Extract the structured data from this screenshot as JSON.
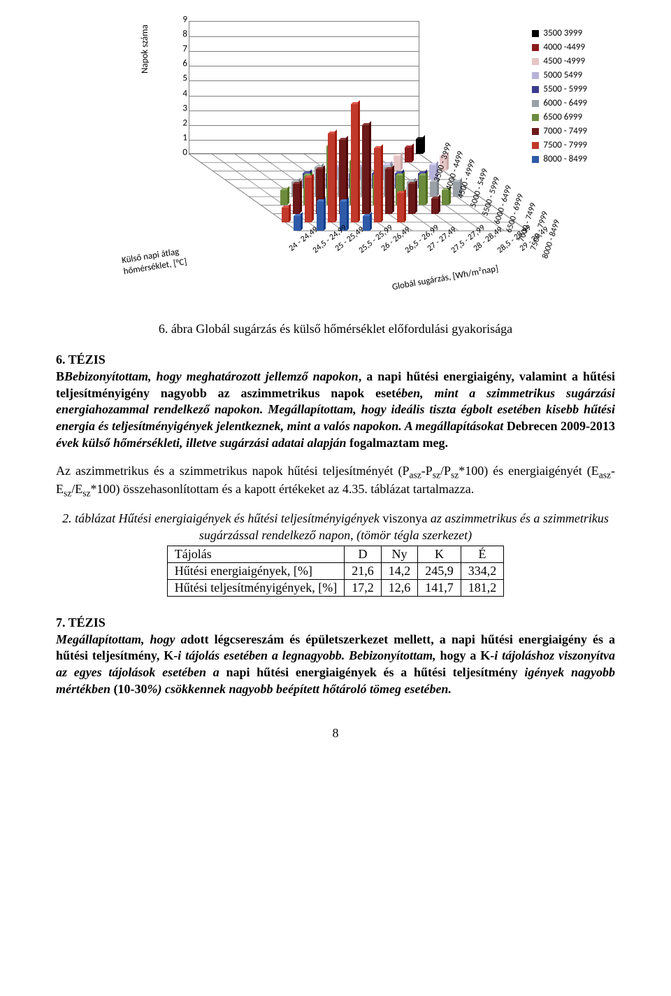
{
  "chart": {
    "type": "bar3d",
    "y_axis_title": "Napok száma",
    "y_ticks": [
      0,
      1,
      2,
      3,
      4,
      5,
      6,
      7,
      8,
      9
    ],
    "ymax": 9,
    "x_outer_title": "Külső napi átlag\nhőmérséklet, [°C]",
    "x_outer": [
      "24 - 24,49",
      "24,5 - 24,99",
      "25 - 25,49",
      "25,5 - 25,99",
      "26 - 26,49",
      "26,5 - 26,99",
      "27 - 27,49",
      "27,5 - 27,99",
      "28 - 28,49",
      "28,5 - 28,99",
      "29 - 29,49"
    ],
    "x_inner_title": "Globál sugárzás, [Wh/m²nap]",
    "x_inner": [
      "8000 - 8499",
      "7500 - 7999",
      "7000 - 7499",
      "6500 - 6999",
      "6000 - 6499",
      "5500 - 5999",
      "5000 - 5499",
      "4500 - 4999",
      "4000 - 4499",
      "3500 - 3999"
    ],
    "legend": [
      {
        "label": "3500  3999",
        "color": "#000000"
      },
      {
        "label": "4000 -4499",
        "color": "#8b1a1a"
      },
      {
        "label": "4500 -4999",
        "color": "#e6c5c5"
      },
      {
        "label": "5000  5499",
        "color": "#b7b2d8"
      },
      {
        "label": "5500 - 5999",
        "color": "#3b3b8e"
      },
      {
        "label": "6000 - 6499",
        "color": "#9aa0a6"
      },
      {
        "label": "6500  6999",
        "color": "#6d8b3d"
      },
      {
        "label": "7000 - 7499",
        "color": "#6b1919"
      },
      {
        "label": "7500 - 7999",
        "color": "#c0392b"
      },
      {
        "label": "8000 - 8499",
        "color": "#2f5aa8"
      }
    ],
    "bars": [
      {
        "outer": 0,
        "depth": 9,
        "h": 1,
        "c": "#2f5aa8"
      },
      {
        "outer": 0,
        "depth": 8,
        "h": 1,
        "c": "#c0392b"
      },
      {
        "outer": 1,
        "depth": 9,
        "h": 2,
        "c": "#2f5aa8"
      },
      {
        "outer": 1,
        "depth": 8,
        "h": 3,
        "c": "#c0392b"
      },
      {
        "outer": 1,
        "depth": 7,
        "h": 2,
        "c": "#6b1919"
      },
      {
        "outer": 1,
        "depth": 6,
        "h": 1,
        "c": "#6d8b3d"
      },
      {
        "outer": 2,
        "depth": 9,
        "h": 2,
        "c": "#2f5aa8"
      },
      {
        "outer": 2,
        "depth": 8,
        "h": 6,
        "c": "#c0392b"
      },
      {
        "outer": 2,
        "depth": 7,
        "h": 3,
        "c": "#6b1919"
      },
      {
        "outer": 2,
        "depth": 6,
        "h": 2,
        "c": "#6d8b3d"
      },
      {
        "outer": 2,
        "depth": 5,
        "h": 1,
        "c": "#9aa0a6"
      },
      {
        "outer": 3,
        "depth": 9,
        "h": 1,
        "c": "#2f5aa8"
      },
      {
        "outer": 3,
        "depth": 8,
        "h": 8,
        "c": "#c0392b"
      },
      {
        "outer": 3,
        "depth": 7,
        "h": 5,
        "c": "#6b1919"
      },
      {
        "outer": 3,
        "depth": 6,
        "h": 4,
        "c": "#6d8b3d"
      },
      {
        "outer": 3,
        "depth": 5,
        "h": 2,
        "c": "#9aa0a6"
      },
      {
        "outer": 3,
        "depth": 4,
        "h": 1,
        "c": "#3b3b8e"
      },
      {
        "outer": 4,
        "depth": 8,
        "h": 5,
        "c": "#c0392b"
      },
      {
        "outer": 4,
        "depth": 7,
        "h": 6,
        "c": "#6b1919"
      },
      {
        "outer": 4,
        "depth": 6,
        "h": 3,
        "c": "#6d8b3d"
      },
      {
        "outer": 4,
        "depth": 5,
        "h": 2,
        "c": "#9aa0a6"
      },
      {
        "outer": 4,
        "depth": 4,
        "h": 1,
        "c": "#3b3b8e"
      },
      {
        "outer": 5,
        "depth": 8,
        "h": 2,
        "c": "#c0392b"
      },
      {
        "outer": 5,
        "depth": 7,
        "h": 3,
        "c": "#6b1919"
      },
      {
        "outer": 5,
        "depth": 6,
        "h": 2,
        "c": "#6d8b3d"
      },
      {
        "outer": 5,
        "depth": 5,
        "h": 2,
        "c": "#9aa0a6"
      },
      {
        "outer": 5,
        "depth": 4,
        "h": 1,
        "c": "#3b3b8e"
      },
      {
        "outer": 5,
        "depth": 3,
        "h": 1,
        "c": "#b7b2d8"
      },
      {
        "outer": 6,
        "depth": 7,
        "h": 2,
        "c": "#6b1919"
      },
      {
        "outer": 6,
        "depth": 6,
        "h": 2,
        "c": "#6d8b3d"
      },
      {
        "outer": 6,
        "depth": 5,
        "h": 2,
        "c": "#9aa0a6"
      },
      {
        "outer": 6,
        "depth": 4,
        "h": 1,
        "c": "#3b3b8e"
      },
      {
        "outer": 6,
        "depth": 3,
        "h": 1,
        "c": "#b7b2d8"
      },
      {
        "outer": 7,
        "depth": 7,
        "h": 1,
        "c": "#6b1919"
      },
      {
        "outer": 7,
        "depth": 6,
        "h": 2,
        "c": "#6d8b3d"
      },
      {
        "outer": 7,
        "depth": 5,
        "h": 1,
        "c": "#9aa0a6"
      },
      {
        "outer": 7,
        "depth": 4,
        "h": 1,
        "c": "#3b3b8e"
      },
      {
        "outer": 7,
        "depth": 3,
        "h": 1,
        "c": "#b7b2d8"
      },
      {
        "outer": 8,
        "depth": 6,
        "h": 1,
        "c": "#6d8b3d"
      },
      {
        "outer": 8,
        "depth": 5,
        "h": 1,
        "c": "#9aa0a6"
      },
      {
        "outer": 8,
        "depth": 4,
        "h": 1,
        "c": "#3b3b8e"
      },
      {
        "outer": 8,
        "depth": 2,
        "h": 1,
        "c": "#e6c5c5"
      },
      {
        "outer": 9,
        "depth": 5,
        "h": 1,
        "c": "#9aa0a6"
      },
      {
        "outer": 9,
        "depth": 3,
        "h": 1,
        "c": "#b7b2d8"
      },
      {
        "outer": 9,
        "depth": 1,
        "h": 1,
        "c": "#8b1a1a"
      },
      {
        "outer": 10,
        "depth": 2,
        "h": 1,
        "c": "#e6c5c5"
      },
      {
        "outer": 10,
        "depth": 0,
        "h": 1,
        "c": "#000000"
      }
    ],
    "grid_color": "#808080",
    "background_color": "#ffffff"
  },
  "caption": "6. ábra Globál sugárzás és külső hőmérséklet előfordulási gyakorisága",
  "thesis6_head": "6. TÉZIS",
  "thesis6_body_a": "Bebizonyítottam, hogy meghatározott jellemző napokon",
  "thesis6_body_b": ", a napi hűtési energiaigény, valamint a hűtési teljesítményigény nagyobb az aszimmetrikus napok eseté",
  "thesis6_body_c": "ben, mint a szimmetrikus sugárzási energiahozammal rendelkező napokon.",
  "thesis6_body_d": " Megállapítottam, hogy ideális tiszta égbolt esetében kisebb hűtési energia és teljesítményigények jelentkeznek, mint a valós napokon.",
  "thesis6_body_e": " A megállapításokat ",
  "thesis6_body_f": "Debrecen 2009-2013 ",
  "thesis6_body_g": "évek külső hőmérsékleti, illetve sugárzási adatai alapján ",
  "thesis6_body_h": "fogalmaztam meg.",
  "para2_pre": "Az aszimmetrikus és a szimmetrikus napok hűtési teljesítményét (P",
  "para2_sub1": "asz",
  "para2_mid1": "-P",
  "para2_sub2": "sz",
  "para2_mid2": "/P",
  "para2_sub3": "sz",
  "para2_mid3": "*100) és energiaigényét (E",
  "para2_sub4": "asz",
  "para2_mid4": "-E",
  "para2_sub5": "sz",
  "para2_mid5": "/E",
  "para2_sub6": "sz",
  "para2_post": "*100) összehasonlítottam és a kapott értékeket az 4.35. táblázat tartalmazza.",
  "table_caption_a": "2. táblázat Hűtési energiaigények és hűtési teljesítményigények ",
  "table_caption_b": "viszonya ",
  "table_caption_c": "az aszimmetrikus és a szimmetrikus sugárzással rendelkező napon, (tömör tégla szerkezet)",
  "table": {
    "col_label": "Tájolás",
    "headers": [
      "D",
      "Ny",
      "K",
      "É"
    ],
    "rows": [
      {
        "label": "Hűtési energiaigények, [%]",
        "vals": [
          "21,6",
          "14,2",
          "245,9",
          "334,2"
        ]
      },
      {
        "label": "Hűtési teljesítményigények, [%]",
        "vals": [
          "17,2",
          "12,6",
          "141,7",
          "181,2"
        ]
      }
    ]
  },
  "thesis7_head": "7. TÉZIS",
  "thesis7_a": "Megállapítottam, hogy a",
  "thesis7_b": "dott légcsereszám és épületszerkezet mellett, a ",
  "thesis7_c": "napi hűtési energiaigény és a hűtési teljesítmény, K-",
  "thesis7_d": "i tájolás esetében a legnagyobb.",
  "thesis7_e": " Bebizonyítottam, ",
  "thesis7_f": "hogy a K-",
  "thesis7_g": "i tájoláshoz viszonyítva az egyes tájolások esetében a ",
  "thesis7_h": "napi hűtési energiaigények és a hűtési teljesítmény ",
  "thesis7_i": "igények nagyobb mértékben ",
  "thesis7_j": "(10-30",
  "thesis7_k": "%",
  "thesis7_l": ") csökkennek nagyobb beépített hőtároló tömeg esetében.",
  "pagenum": "8"
}
